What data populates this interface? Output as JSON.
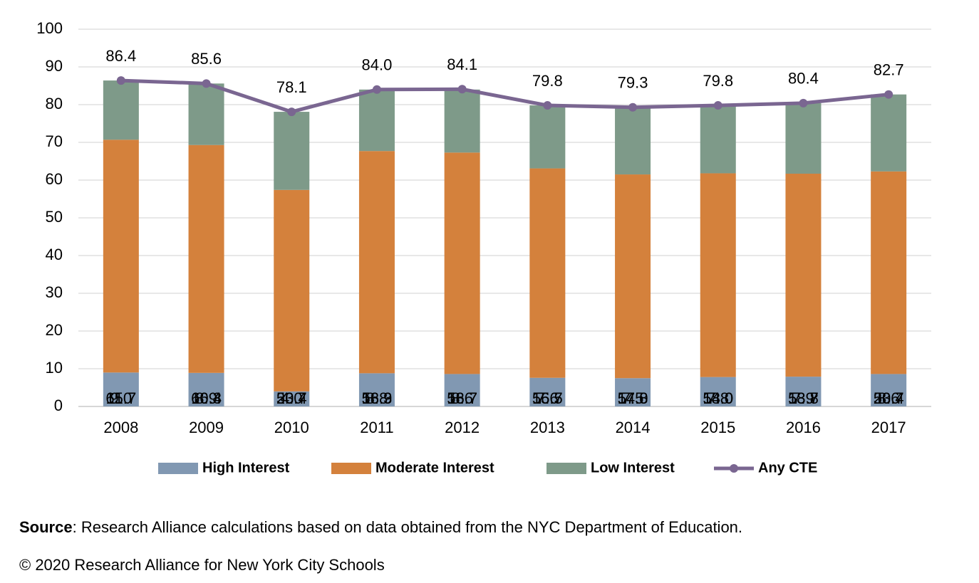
{
  "chart_data": {
    "type": "bar",
    "stacked": true,
    "categories": [
      "2008",
      "2009",
      "2010",
      "2011",
      "2012",
      "2013",
      "2014",
      "2015",
      "2016",
      "2017"
    ],
    "series": [
      {
        "name": "High Interest",
        "color": "#8198b2",
        "values": [
          9.0,
          8.9,
          4.0,
          8.8,
          8.6,
          7.6,
          7.5,
          7.8,
          7.9,
          8.6
        ],
        "value_labels": [
          "9.0",
          "8.9",
          "4.0",
          "8.8",
          "8.6",
          "7.6",
          "7.5",
          "7.8",
          "7.9",
          "8.6"
        ]
      },
      {
        "name": "Moderate Interest",
        "color": "#d4813c",
        "values": [
          61.7,
          60.4,
          53.4,
          58.9,
          58.7,
          55.5,
          54.0,
          54.0,
          53.8,
          53.7
        ],
        "value_labels": [
          "61.7",
          "60.4",
          "53.4",
          "58.9",
          "58.7",
          "55.5",
          "54.0",
          "54.0",
          "53.8",
          "53.7"
        ]
      },
      {
        "name": "Low Interest",
        "color": "#7e9a89",
        "values": [
          15.7,
          16.3,
          20.7,
          16.3,
          16.7,
          16.7,
          17.8,
          18.0,
          18.7,
          20.4
        ],
        "value_labels": [
          "15.7",
          "16.3",
          "20.7",
          "16.3",
          "16.7",
          "16.7",
          "17.8",
          "18.0",
          "18.7",
          "20.4"
        ]
      },
      {
        "name": "Any CTE",
        "type": "line",
        "color": "#7a6691",
        "values": [
          86.4,
          85.6,
          78.1,
          84.0,
          84.1,
          79.8,
          79.3,
          79.8,
          80.4,
          82.7
        ],
        "value_labels": [
          "86.4",
          "85.6",
          "78.1",
          "84.0",
          "84.1",
          "79.8",
          "79.3",
          "79.8",
          "80.4",
          "82.7"
        ]
      }
    ],
    "ylim": [
      0,
      100
    ],
    "yticks": [
      0,
      10,
      20,
      30,
      40,
      50,
      60,
      70,
      80,
      90,
      100
    ],
    "grid": true,
    "legend": "bottom",
    "source_label": "Source",
    "source_text": ": Research Alliance calculations based on data obtained from the NYC Department of Education.",
    "copyright": "© 2020 Research Alliance for New York City Schools"
  }
}
